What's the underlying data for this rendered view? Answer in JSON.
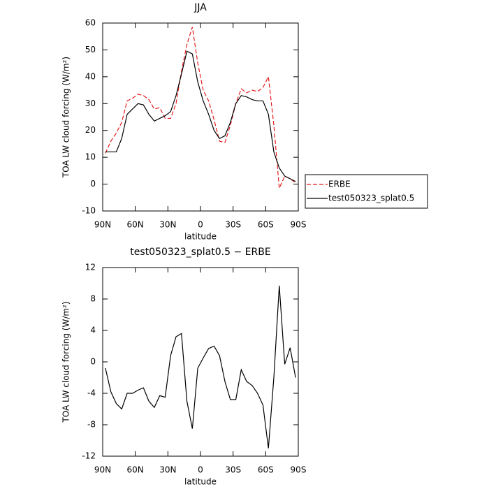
{
  "chart_data": [
    {
      "type": "line",
      "title": "JJA",
      "xlabel": "latitude",
      "ylabel": "TOA LW cloud forcing (W/m²)",
      "x": [
        87.5,
        82.5,
        77.5,
        72.5,
        67.5,
        62.5,
        57.5,
        52.5,
        47.5,
        42.5,
        37.5,
        32.5,
        27.5,
        22.5,
        17.5,
        12.5,
        7.5,
        2.5,
        -2.5,
        -7.5,
        -12.5,
        -17.5,
        -22.5,
        -27.5,
        -32.5,
        -37.5,
        -42.5,
        -47.5,
        -52.5,
        -57.5,
        -62.5,
        -67.5,
        -72.5,
        -77.5,
        -82.5,
        -87.5
      ],
      "xlim": [
        90,
        -90
      ],
      "xticks": [
        {
          "value": 90,
          "label": "90N"
        },
        {
          "value": 60,
          "label": "60N"
        },
        {
          "value": 30,
          "label": "30N"
        },
        0,
        {
          "value": -30,
          "label": "30S"
        },
        {
          "value": -60,
          "label": "60S"
        },
        {
          "value": -90,
          "label": "90S"
        }
      ],
      "ylim": [
        -10,
        60
      ],
      "yticks": [
        -10,
        0,
        10,
        20,
        30,
        40,
        50,
        60
      ],
      "legend": "right",
      "series": [
        {
          "name": "ERBE",
          "color": "#e41a1c",
          "line_style": "dashed",
          "values": [
            11.5,
            16,
            19,
            23,
            31,
            32,
            33.5,
            33,
            31.5,
            28,
            28.5,
            24.5,
            24.5,
            30,
            42,
            52,
            58.5,
            45,
            35,
            31,
            24,
            16,
            15.5,
            22,
            30,
            35.5,
            34,
            35,
            34.5,
            36,
            40,
            22,
            -1.5,
            3,
            2,
            0.5
          ]
        },
        {
          "name": "test050323_splat0.5",
          "color": "#000000",
          "line_style": "solid",
          "values": [
            12,
            12,
            12,
            17,
            26,
            28,
            30,
            29.5,
            26,
            23.5,
            24.5,
            25.5,
            27,
            33,
            41,
            49.5,
            48.5,
            38,
            31,
            26,
            20,
            17,
            18,
            23,
            30,
            33,
            32.5,
            31.5,
            31,
            31,
            26,
            12,
            6,
            3,
            2,
            1
          ]
        }
      ]
    },
    {
      "type": "line",
      "title": "test050323_splat0.5 − ERBE",
      "xlabel": "latitude",
      "ylabel": "TOA LW cloud forcing (W/m²)",
      "x": [
        87.5,
        82.5,
        77.5,
        72.5,
        67.5,
        62.5,
        57.5,
        52.5,
        47.5,
        42.5,
        37.5,
        32.5,
        27.5,
        22.5,
        17.5,
        12.5,
        7.5,
        2.5,
        -2.5,
        -7.5,
        -12.5,
        -17.5,
        -22.5,
        -27.5,
        -32.5,
        -37.5,
        -42.5,
        -47.5,
        -52.5,
        -57.5,
        -62.5,
        -67.5,
        -72.5,
        -77.5,
        -82.5,
        -87.5
      ],
      "xlim": [
        90,
        -90
      ],
      "xticks": [
        {
          "value": 90,
          "label": "90N"
        },
        {
          "value": 60,
          "label": "60N"
        },
        {
          "value": 30,
          "label": "30N"
        },
        0,
        {
          "value": -30,
          "label": "30S"
        },
        {
          "value": -60,
          "label": "60S"
        },
        {
          "value": -90,
          "label": "90S"
        }
      ],
      "ylim": [
        -12,
        12
      ],
      "yticks": [
        -12,
        -8,
        -4,
        0,
        4,
        8,
        12
      ],
      "color": "#000000",
      "values": [
        -0.8,
        -3.8,
        -5.3,
        -6,
        -4,
        -4,
        -3.6,
        -3.3,
        -5,
        -5.8,
        -4.3,
        -4.5,
        0.8,
        3.2,
        3.6,
        -5,
        -8.5,
        -0.8,
        0.5,
        1.7,
        2,
        0.8,
        -2.5,
        -4.8,
        -4.8,
        -1,
        -2.5,
        -3,
        -4,
        -5.5,
        -11,
        -2,
        9.7,
        -0.3,
        1.8,
        -2
      ]
    }
  ]
}
